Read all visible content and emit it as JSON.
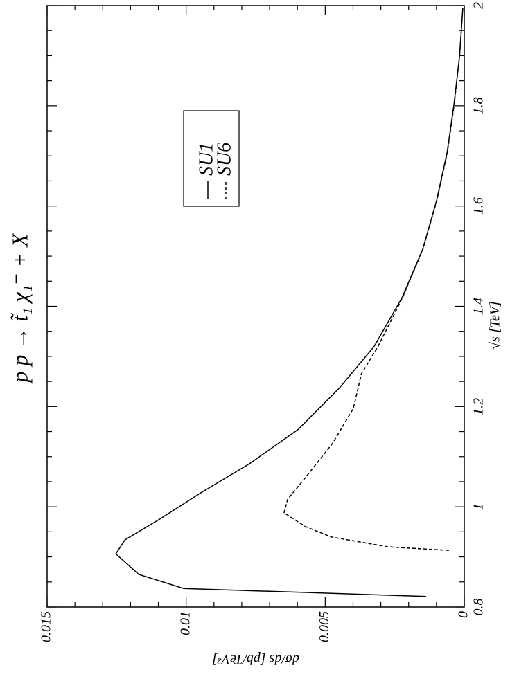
{
  "chart_data": {
    "type": "line",
    "title": "p p → t̃₁ χ₁⁻ + X",
    "x_label": "√s [TeV]",
    "y_label": "dσ/ds [pb/TeV²]",
    "xlim": [
      0.8,
      2
    ],
    "ylim": [
      0,
      0.015
    ],
    "xticks": [
      0.8,
      1,
      1.2,
      1.4,
      1.6,
      1.8,
      2
    ],
    "yticks": [
      0,
      0.005,
      0.01,
      0.015
    ],
    "xminorticks": [
      0.85,
      0.9,
      0.95,
      1.05,
      1.1,
      1.15,
      1.25,
      1.3,
      1.35,
      1.45,
      1.5,
      1.55,
      1.65,
      1.7,
      1.75,
      1.85,
      1.9,
      1.95
    ],
    "yminorticks": [
      0.001,
      0.002,
      0.003,
      0.004,
      0.006,
      0.007,
      0.008,
      0.009,
      0.011,
      0.012,
      0.013,
      0.014
    ],
    "legend": "upper-right",
    "series": [
      {
        "name": "SU1",
        "color": "#000000",
        "line_style": "solid",
        "x": [
          0.821,
          0.837,
          0.865,
          0.906,
          0.934,
          0.975,
          1.028,
          1.086,
          1.154,
          1.237,
          1.32,
          1.417,
          1.513,
          1.61,
          1.706,
          1.803,
          1.899,
          1.996
        ],
        "values": [
          0.00137,
          0.01009,
          0.0117,
          0.01253,
          0.0122,
          0.01096,
          0.00947,
          0.00772,
          0.00598,
          0.00449,
          0.00324,
          0.00224,
          0.0015,
          0.001,
          0.00062,
          0.00037,
          0.00017,
          5e-05
        ]
      },
      {
        "name": "SU6",
        "color": "#000000",
        "line_style": "dashed",
        "x": [
          0.913,
          0.92,
          0.94,
          0.961,
          0.988,
          1.015,
          1.057,
          1.127,
          1.196,
          1.265,
          1.32,
          1.417,
          1.513,
          1.61,
          1.706,
          1.803,
          1.899,
          1.996
        ],
        "values": [
          0.00055,
          0.00274,
          0.0048,
          0.00573,
          0.00648,
          0.00635,
          0.00573,
          0.00473,
          0.00399,
          0.0037,
          0.0031,
          0.00222,
          0.00149,
          0.00099,
          0.00061,
          0.00036,
          0.00017,
          5e-05
        ]
      }
    ]
  }
}
